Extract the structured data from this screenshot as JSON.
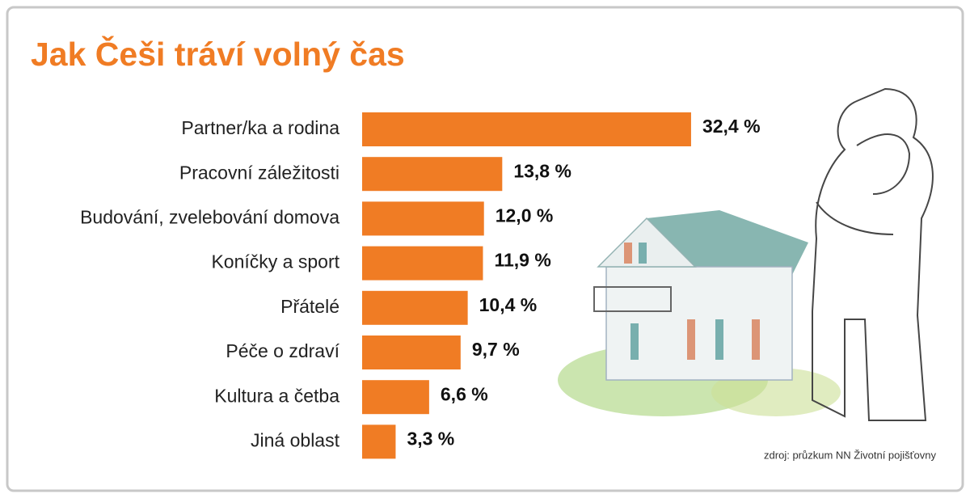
{
  "chart_data": {
    "type": "bar",
    "orientation": "horizontal",
    "title": "Jak Češi tráví volný čas",
    "categories": [
      "Partner/ka a rodina",
      "Pracovní záležitosti",
      "Budování, zvelebování domova",
      "Koníčky a sport",
      "Přátelé",
      "Péče o zdraví",
      "Kultura a četba",
      "Jiná oblast"
    ],
    "values": [
      32.4,
      13.8,
      12.0,
      11.9,
      10.4,
      9.7,
      6.6,
      3.3
    ],
    "value_labels": [
      "32,4 %",
      "13,8 %",
      "12,0 %",
      "11,9 %",
      "10,4 %",
      "9,7 %",
      "6,6 %",
      "3,3 %"
    ],
    "color": "#f07c24",
    "source": "zdroj: průzkum NN Životní pojišťovny"
  }
}
